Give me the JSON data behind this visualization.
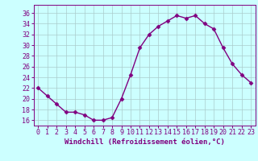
{
  "x": [
    0,
    1,
    2,
    3,
    4,
    5,
    6,
    7,
    8,
    9,
    10,
    11,
    12,
    13,
    14,
    15,
    16,
    17,
    18,
    19,
    20,
    21,
    22,
    23
  ],
  "y": [
    22,
    20.5,
    19,
    17.5,
    17.5,
    17,
    16,
    16,
    16.5,
    20,
    24.5,
    29.5,
    32,
    33.5,
    34.5,
    35.5,
    35,
    35.5,
    34,
    33,
    29.5,
    26.5,
    24.5,
    23
  ],
  "line_color": "#800080",
  "marker": "D",
  "markersize": 2.5,
  "linewidth": 1.0,
  "xlabel": "Windchill (Refroidissement éolien,°C)",
  "xlabel_fontsize": 6.5,
  "ylabel_ticks": [
    16,
    18,
    20,
    22,
    24,
    26,
    28,
    30,
    32,
    34,
    36
  ],
  "xlim": [
    -0.5,
    23.5
  ],
  "ylim": [
    15.0,
    37.5
  ],
  "bg_color": "#ccffff",
  "grid_color": "#aacccc",
  "tick_fontsize": 6.0,
  "xtick_labels": [
    "0",
    "1",
    "2",
    "3",
    "4",
    "5",
    "6",
    "7",
    "8",
    "9",
    "10",
    "11",
    "12",
    "13",
    "14",
    "15",
    "16",
    "17",
    "18",
    "19",
    "20",
    "21",
    "22",
    "23"
  ]
}
